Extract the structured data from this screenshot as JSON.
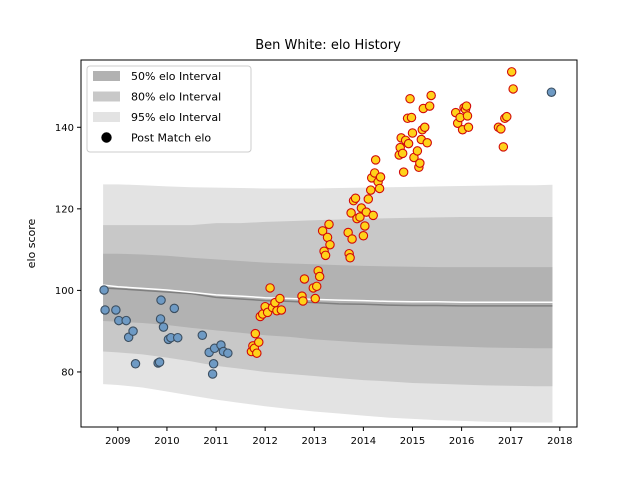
{
  "chart_data": {
    "type": "scatter",
    "title": "Ben White: elo History",
    "xlabel": "",
    "ylabel": "elo score",
    "xlim": [
      2008.25,
      2018.35
    ],
    "ylim": [
      66.5,
      156.5
    ],
    "x_ticks": [
      2009,
      2010,
      2011,
      2012,
      2013,
      2014,
      2015,
      2016,
      2017,
      2018
    ],
    "y_ticks": [
      80,
      100,
      120,
      140
    ],
    "grid": false,
    "legend_position": "upper-left",
    "legend": [
      {
        "label": "50% elo Interval",
        "kind": "band",
        "color": "#b2b2b2"
      },
      {
        "label": "80% elo Interval",
        "kind": "band",
        "color": "#c8c8c8"
      },
      {
        "label": "95% elo Interval",
        "kind": "band",
        "color": "#e3e3e3"
      },
      {
        "label": "Post Match elo",
        "kind": "marker",
        "color": "#000000"
      }
    ],
    "bands": {
      "x": [
        2008.7,
        2009.0,
        2009.5,
        2010.0,
        2010.5,
        2011.0,
        2011.5,
        2012.0,
        2012.5,
        2013.0,
        2013.5,
        2014.0,
        2014.5,
        2015.0,
        2015.5,
        2016.0,
        2016.5,
        2017.0,
        2017.5,
        2017.85
      ],
      "median": [
        100.6,
        100.4,
        100.0,
        99.6,
        99.2,
        98.3,
        97.9,
        97.5,
        97.3,
        97.0,
        96.7,
        96.6,
        96.4,
        96.3,
        96.3,
        96.2,
        96.2,
        96.2,
        96.2,
        96.2
      ],
      "mean": [
        101.3,
        100.9,
        100.5,
        100.1,
        99.5,
        98.9,
        98.6,
        98.2,
        98.0,
        97.8,
        97.6,
        97.5,
        97.3,
        97.2,
        97.2,
        97.1,
        97.1,
        97.1,
        97.1,
        97.1
      ],
      "p50": [
        [
          92.5,
          109.0
        ],
        [
          92.3,
          109.0
        ],
        [
          92.0,
          108.8
        ],
        [
          91.5,
          108.5
        ],
        [
          90.8,
          108.0
        ],
        [
          90.2,
          107.6
        ],
        [
          89.6,
          107.2
        ],
        [
          89.0,
          106.8
        ],
        [
          88.6,
          106.6
        ],
        [
          88.0,
          106.4
        ],
        [
          87.6,
          106.2
        ],
        [
          87.2,
          106.0
        ],
        [
          86.9,
          105.9
        ],
        [
          86.6,
          105.8
        ],
        [
          86.4,
          105.7
        ],
        [
          86.2,
          105.7
        ],
        [
          86.0,
          105.7
        ],
        [
          85.9,
          105.7
        ],
        [
          85.8,
          105.7
        ],
        [
          85.8,
          105.7
        ]
      ],
      "p80": [
        [
          85.0,
          116.0
        ],
        [
          84.8,
          116.0
        ],
        [
          84.3,
          116.0
        ],
        [
          83.5,
          116.0
        ],
        [
          82.6,
          116.0
        ],
        [
          81.5,
          116.5
        ],
        [
          80.8,
          116.5
        ],
        [
          80.0,
          116.8
        ],
        [
          79.5,
          117.0
        ],
        [
          79.0,
          117.2
        ],
        [
          78.5,
          117.4
        ],
        [
          78.0,
          117.6
        ],
        [
          77.7,
          117.7
        ],
        [
          77.3,
          117.8
        ],
        [
          77.1,
          117.9
        ],
        [
          76.9,
          118.0
        ],
        [
          76.7,
          118.0
        ],
        [
          76.6,
          118.0
        ],
        [
          76.5,
          118.0
        ],
        [
          76.5,
          118.0
        ]
      ],
      "p95": [
        [
          77.0,
          126.0
        ],
        [
          76.8,
          126.0
        ],
        [
          76.2,
          125.8
        ],
        [
          75.2,
          125.5
        ],
        [
          74.2,
          125.3
        ],
        [
          73.2,
          125.2
        ],
        [
          72.4,
          125.1
        ],
        [
          71.6,
          125.0
        ],
        [
          70.9,
          125.0
        ],
        [
          70.3,
          125.0
        ],
        [
          69.8,
          125.1
        ],
        [
          69.3,
          125.2
        ],
        [
          68.8,
          125.3
        ],
        [
          68.5,
          125.4
        ],
        [
          68.2,
          125.5
        ],
        [
          68.0,
          125.6
        ],
        [
          67.8,
          125.7
        ],
        [
          67.7,
          125.8
        ],
        [
          67.6,
          125.8
        ],
        [
          67.6,
          125.9
        ]
      ]
    },
    "series": [
      {
        "name": "Post Match elo",
        "style": "blue",
        "points": [
          [
            2008.72,
            100.1
          ],
          [
            2008.74,
            95.2
          ],
          [
            2008.96,
            95.2
          ],
          [
            2009.02,
            92.6
          ],
          [
            2009.17,
            92.6
          ],
          [
            2009.22,
            88.5
          ],
          [
            2009.31,
            90.0
          ],
          [
            2009.36,
            82.0
          ],
          [
            2009.82,
            82.2
          ],
          [
            2009.85,
            82.4
          ],
          [
            2009.87,
            93.0
          ],
          [
            2009.88,
            97.6
          ],
          [
            2009.93,
            91.0
          ],
          [
            2010.03,
            88.0
          ],
          [
            2010.08,
            88.4
          ],
          [
            2010.15,
            95.6
          ],
          [
            2010.22,
            88.4
          ],
          [
            2010.72,
            89.0
          ],
          [
            2010.86,
            84.8
          ],
          [
            2010.93,
            79.5
          ],
          [
            2010.95,
            82.0
          ],
          [
            2010.97,
            85.8
          ],
          [
            2011.1,
            86.6
          ],
          [
            2011.15,
            85.0
          ],
          [
            2011.24,
            84.6
          ],
          [
            2017.83,
            148.6
          ]
        ]
      },
      {
        "name": "Post Match elo",
        "style": "gold",
        "points": [
          [
            2011.72,
            85.0
          ],
          [
            2011.75,
            86.4
          ],
          [
            2011.78,
            85.8
          ],
          [
            2011.8,
            89.4
          ],
          [
            2011.83,
            84.6
          ],
          [
            2011.87,
            87.3
          ],
          [
            2011.9,
            93.6
          ],
          [
            2011.95,
            94.2
          ],
          [
            2012.0,
            96.0
          ],
          [
            2012.05,
            94.6
          ],
          [
            2012.1,
            100.6
          ],
          [
            2012.15,
            95.8
          ],
          [
            2012.2,
            97.0
          ],
          [
            2012.24,
            95.0
          ],
          [
            2012.3,
            98.0
          ],
          [
            2012.33,
            95.2
          ],
          [
            2012.75,
            98.6
          ],
          [
            2012.77,
            97.4
          ],
          [
            2012.8,
            102.8
          ],
          [
            2012.98,
            100.6
          ],
          [
            2013.02,
            98.0
          ],
          [
            2013.05,
            101.0
          ],
          [
            2013.08,
            104.8
          ],
          [
            2013.11,
            103.4
          ],
          [
            2013.17,
            114.6
          ],
          [
            2013.2,
            109.6
          ],
          [
            2013.23,
            108.6
          ],
          [
            2013.27,
            113.0
          ],
          [
            2013.3,
            116.2
          ],
          [
            2013.32,
            111.2
          ],
          [
            2013.69,
            114.2
          ],
          [
            2013.71,
            109.0
          ],
          [
            2013.73,
            108.0
          ],
          [
            2013.75,
            119.0
          ],
          [
            2013.77,
            112.6
          ],
          [
            2013.8,
            122.0
          ],
          [
            2013.84,
            122.6
          ],
          [
            2013.87,
            117.6
          ],
          [
            2013.93,
            118.0
          ],
          [
            2013.96,
            120.2
          ],
          [
            2014.0,
            113.4
          ],
          [
            2014.03,
            115.8
          ],
          [
            2014.06,
            119.2
          ],
          [
            2014.1,
            122.4
          ],
          [
            2014.15,
            124.6
          ],
          [
            2014.17,
            127.6
          ],
          [
            2014.2,
            118.4
          ],
          [
            2014.23,
            128.8
          ],
          [
            2014.25,
            132.0
          ],
          [
            2014.3,
            126.6
          ],
          [
            2014.33,
            125.0
          ],
          [
            2014.35,
            127.8
          ],
          [
            2014.73,
            133.2
          ],
          [
            2014.75,
            135.0
          ],
          [
            2014.77,
            137.4
          ],
          [
            2014.8,
            133.6
          ],
          [
            2014.82,
            129.0
          ],
          [
            2014.86,
            136.8
          ],
          [
            2014.9,
            142.2
          ],
          [
            2014.92,
            136.0
          ],
          [
            2014.95,
            147.0
          ],
          [
            2014.98,
            142.4
          ],
          [
            2015.0,
            138.6
          ],
          [
            2015.03,
            132.6
          ],
          [
            2015.1,
            134.2
          ],
          [
            2015.13,
            130.2
          ],
          [
            2015.15,
            131.2
          ],
          [
            2015.18,
            137.0
          ],
          [
            2015.2,
            139.4
          ],
          [
            2015.22,
            144.6
          ],
          [
            2015.25,
            140.0
          ],
          [
            2015.3,
            136.2
          ],
          [
            2015.35,
            145.2
          ],
          [
            2015.38,
            147.8
          ],
          [
            2015.88,
            143.6
          ],
          [
            2015.92,
            141.0
          ],
          [
            2015.97,
            142.4
          ],
          [
            2016.02,
            139.4
          ],
          [
            2016.05,
            144.8
          ],
          [
            2016.08,
            144.4
          ],
          [
            2016.1,
            145.2
          ],
          [
            2016.12,
            142.8
          ],
          [
            2016.14,
            140.0
          ],
          [
            2016.75,
            140.0
          ],
          [
            2016.8,
            139.6
          ],
          [
            2016.85,
            135.2
          ],
          [
            2016.88,
            142.2
          ],
          [
            2016.92,
            142.6
          ],
          [
            2017.02,
            153.6
          ],
          [
            2017.05,
            149.4
          ]
        ]
      }
    ]
  }
}
